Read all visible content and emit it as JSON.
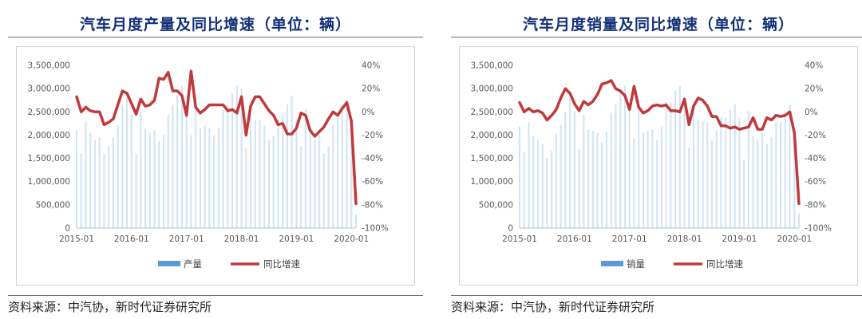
{
  "source_text": "资料来源：中汽协，新时代证券研究所",
  "chart_data": [
    {
      "type": "bar+line",
      "title": "汽车月度产量及同比增速（单位：辆）",
      "x_ticks": [
        "2015-01",
        "2016-01",
        "2017-01",
        "2018-01",
        "2019-01",
        "2020-01"
      ],
      "left_axis": {
        "ticks": [
          "0",
          "500,000",
          "1,000,000",
          "1,500,000",
          "2,000,000",
          "2,500,000",
          "3,000,000",
          "3,500,000"
        ],
        "ylim": [
          0,
          3500000
        ]
      },
      "right_axis": {
        "ticks": [
          "-100%",
          "-80%",
          "-60%",
          "-40%",
          "-20%",
          "0%",
          "20%",
          "40%"
        ],
        "ylim": [
          -100,
          40
        ]
      },
      "legend_position": "bottom-center",
      "grid": false,
      "colors": {
        "bars": "#5b9bd5",
        "line": "#c0393b"
      },
      "series": [
        {
          "name": "产量",
          "kind": "bar",
          "axis": "left",
          "values": [
            2100000,
            1610000,
            2300000,
            2050000,
            1900000,
            1950000,
            1600000,
            1750000,
            1950000,
            2200000,
            2650000,
            2830000,
            2450000,
            1600000,
            2510000,
            2150000,
            2050000,
            2100000,
            1870000,
            2000000,
            2440000,
            2650000,
            2850000,
            3060000,
            2470000,
            2000000,
            2760000,
            2150000,
            2200000,
            2150000,
            2000000,
            2150000,
            2550000,
            2640000,
            2900000,
            3070000,
            3000000,
            1710000,
            2650000,
            2320000,
            2330000,
            2200000,
            1900000,
            1980000,
            2350000,
            2430000,
            2660000,
            2850000,
            2350000,
            1750000,
            2560000,
            2050000,
            1920000,
            2000000,
            1610000,
            1760000,
            2230000,
            2360000,
            2620000,
            2760000,
            1950000,
            290000
          ]
        },
        {
          "name": "同比增速",
          "kind": "line",
          "axis": "right",
          "values": [
            13,
            0,
            4,
            1,
            0,
            0,
            -11,
            -9,
            -6,
            6,
            18,
            16,
            7,
            -2,
            11,
            5,
            6,
            10,
            29,
            28,
            34,
            18,
            18,
            14,
            -3,
            35,
            4,
            -1,
            2,
            6,
            6,
            6,
            6,
            1,
            2,
            -1,
            13,
            -20,
            5,
            13,
            13,
            7,
            1,
            -3,
            -11,
            -10,
            -19,
            -19,
            -14,
            -1,
            -3,
            -16,
            -21,
            -17,
            -13,
            -6,
            0,
            -3,
            3,
            8,
            -8,
            -79
          ]
        }
      ]
    },
    {
      "type": "bar+line",
      "title": "汽车月度销量及同比增速（单位：辆）",
      "x_ticks": [
        "2015-01",
        "2016-01",
        "2017-01",
        "2018-01",
        "2019-01",
        "2020-01"
      ],
      "left_axis": {
        "ticks": [
          "0",
          "500,000",
          "1,000,000",
          "1,500,000",
          "2,000,000",
          "2,500,000",
          "3,000,000",
          "3,500,000"
        ],
        "ylim": [
          0,
          3500000
        ]
      },
      "right_axis": {
        "ticks": [
          "-100%",
          "-80%",
          "-60%",
          "-40%",
          "-20%",
          "0%",
          "20%",
          "40%"
        ],
        "ylim": [
          -100,
          40
        ]
      },
      "legend_position": "bottom-center",
      "grid": false,
      "colors": {
        "bars": "#5b9bd5",
        "line": "#c0393b"
      },
      "series": [
        {
          "name": "销量",
          "kind": "bar",
          "axis": "left",
          "values": [
            2180000,
            1650000,
            2270000,
            1990000,
            1900000,
            1810000,
            1510000,
            1660000,
            2020000,
            2220000,
            2500000,
            2790000,
            2520000,
            1690000,
            2440000,
            2120000,
            2090000,
            2050000,
            1840000,
            2070000,
            2480000,
            2660000,
            2940000,
            3060000,
            2520000,
            1940000,
            2540000,
            2070000,
            2100000,
            2120000,
            1890000,
            2180000,
            2710000,
            2700000,
            2960000,
            3050000,
            2810000,
            1720000,
            2650000,
            2310000,
            2290000,
            2270000,
            1880000,
            2100000,
            2390000,
            2380000,
            2550000,
            2660000,
            2370000,
            1480000,
            2520000,
            1980000,
            1910000,
            2050000,
            1810000,
            1960000,
            2270000,
            2270000,
            2450000,
            2650000,
            1940000,
            310000
          ]
        },
        {
          "name": "同比增速",
          "kind": "line",
          "axis": "right",
          "values": [
            8,
            0,
            3,
            0,
            1,
            -1,
            -7,
            -3,
            2,
            12,
            20,
            16,
            7,
            1,
            9,
            6,
            9,
            15,
            24,
            25,
            27,
            20,
            18,
            14,
            2,
            22,
            4,
            -1,
            1,
            5,
            6,
            5,
            6,
            1,
            1,
            0,
            11,
            -11,
            5,
            12,
            10,
            5,
            -4,
            -4,
            -12,
            -12,
            -14,
            -13,
            -15,
            -14,
            -13,
            -5,
            -15,
            -15,
            -5,
            -7,
            -3,
            -4,
            -3,
            0,
            -18,
            -79
          ]
        }
      ]
    }
  ]
}
